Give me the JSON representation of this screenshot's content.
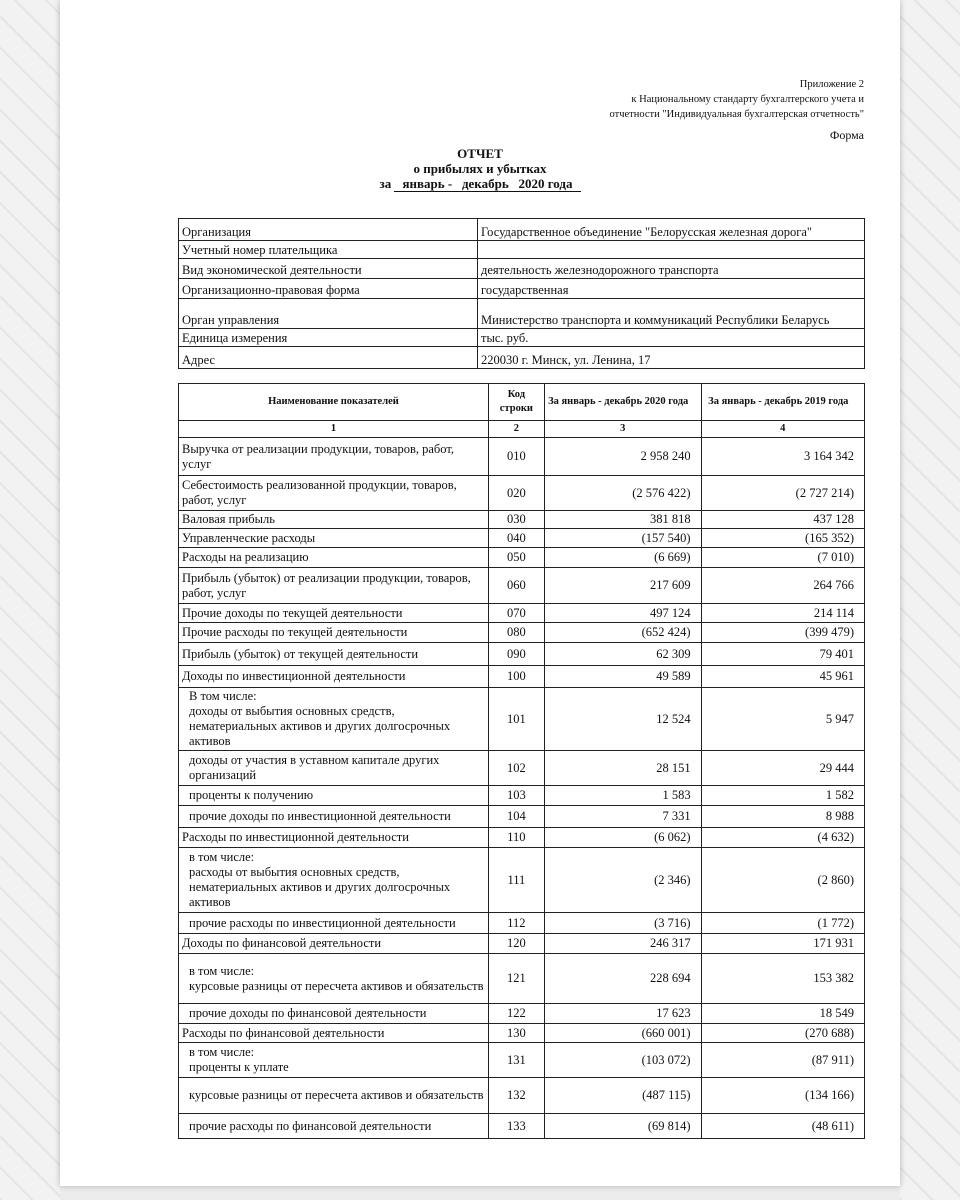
{
  "header": {
    "annex": [
      "Приложение 2",
      "к Национальному стандарту бухгалтерского учета и",
      "отчетности \"Индивидуальная бухгалтерская отчетность\""
    ],
    "form_label": "Форма",
    "title": "ОТЧЕТ",
    "subtitle": "о прибылях и убытках",
    "period_prefix": "за",
    "period": "январь -   декабрь   2020 года"
  },
  "info": [
    {
      "label": "Организация",
      "value": "Государственное объединение \"Белорусская железная дорога\""
    },
    {
      "label": "Учетный номер плательщика",
      "value": ""
    },
    {
      "label": "Вид экономической деятельности",
      "value": "деятельность железнодорожного транспорта"
    },
    {
      "label": "Организационно-правовая форма",
      "value": "государственная"
    },
    {
      "label": "Орган управления",
      "value": "Министерство транспорта и коммуникаций Республики Беларусь"
    },
    {
      "label": "Единица измерения",
      "value": "тыс. руб."
    },
    {
      "label": "Адрес",
      "value": "220030 г. Минск, ул. Ленина, 17"
    }
  ],
  "table": {
    "columns": [
      "Наименование показателей",
      "Код строки",
      "За   январь  -  декабрь 2020 года",
      "За   январь  -  декабрь 2019 года"
    ],
    "column_numbers": [
      "1",
      "2",
      "3",
      "4"
    ],
    "rows": [
      {
        "name": "Выручка от реализации продукции, товаров, работ, услуг",
        "code": "010",
        "y2020": "2 958 240",
        "y2019": "3 164 342"
      },
      {
        "name": "Себестоимость реализованной продукции, товаров, работ, услуг",
        "code": "020",
        "y2020": "(2 576 422)",
        "y2019": "(2 727 214)"
      },
      {
        "name": "Валовая прибыль",
        "code": "030",
        "y2020": "381 818",
        "y2019": "437 128"
      },
      {
        "name": "Управленческие расходы",
        "code": "040",
        "y2020": "(157 540)",
        "y2019": "(165 352)"
      },
      {
        "name": "Расходы на реализацию",
        "code": "050",
        "y2020": "(6 669)",
        "y2019": "(7 010)"
      },
      {
        "name": "Прибыль (убыток) от реализации продукции, товаров, работ, услуг",
        "code": "060",
        "y2020": "217 609",
        "y2019": "264 766"
      },
      {
        "name": "Прочие доходы по текущей деятельности",
        "code": "070",
        "y2020": "497 124",
        "y2019": "214 114"
      },
      {
        "name": "Прочие расходы по текущей деятельности",
        "code": "080",
        "y2020": "(652 424)",
        "y2019": "(399 479)"
      },
      {
        "name": "Прибыль (убыток) от текущей деятельности",
        "code": "090",
        "y2020": "62 309",
        "y2019": "79 401"
      },
      {
        "name": "Доходы по инвестиционной деятельности",
        "code": "100",
        "y2020": "49 589",
        "y2019": "45 961"
      },
      {
        "name": "В том числе:\nдоходы от выбытия основных средств, нематериальных активов и других долгосрочных активов",
        "code": "101",
        "y2020": "12 524",
        "y2019": "5 947",
        "indent": true
      },
      {
        "name": "доходы от участия в уставном капитале других организаций",
        "code": "102",
        "y2020": "28 151",
        "y2019": "29 444",
        "indent": true
      },
      {
        "name": "проценты к получению",
        "code": "103",
        "y2020": "1 583",
        "y2019": "1 582",
        "indent": true
      },
      {
        "name": "прочие доходы по инвестиционной деятельности",
        "code": "104",
        "y2020": "7 331",
        "y2019": "8 988",
        "indent": true
      },
      {
        "name": "Расходы по инвестиционной деятельности",
        "code": "110",
        "y2020": "(6 062)",
        "y2019": "(4 632)"
      },
      {
        "name": "в том числе:\nрасходы от выбытия основных средств, нематериальных активов и других долгосрочных активов",
        "code": "111",
        "y2020": "(2 346)",
        "y2019": "(2 860)",
        "indent": true
      },
      {
        "name": "прочие расходы по инвестиционной деятельности",
        "code": "112",
        "y2020": "(3 716)",
        "y2019": "(1 772)",
        "indent": true
      },
      {
        "name": "Доходы по финансовой деятельности",
        "code": "120",
        "y2020": "246 317",
        "y2019": "171 931"
      },
      {
        "name": "в том числе:\nкурсовые разницы от пересчета активов и обязательств",
        "code": "121",
        "y2020": "228 694",
        "y2019": "153 382",
        "indent": true
      },
      {
        "name": "прочие доходы по финансовой деятельности",
        "code": "122",
        "y2020": "17 623",
        "y2019": "18 549",
        "indent": true
      },
      {
        "name": "Расходы по финансовой деятельности",
        "code": "130",
        "y2020": "(660 001)",
        "y2019": "(270 688)"
      },
      {
        "name": "в том числе:\nпроценты к уплате",
        "code": "131",
        "y2020": "(103 072)",
        "y2019": "(87 911)",
        "indent": true
      },
      {
        "name": "курсовые разницы от пересчета активов и обязательств",
        "code": "132",
        "y2020": "(487 115)",
        "y2019": "(134 166)",
        "indent": true
      },
      {
        "name": "прочие расходы по финансовой деятельности",
        "code": "133",
        "y2020": "(69 814)",
        "y2019": "(48 611)",
        "indent": true
      }
    ]
  }
}
